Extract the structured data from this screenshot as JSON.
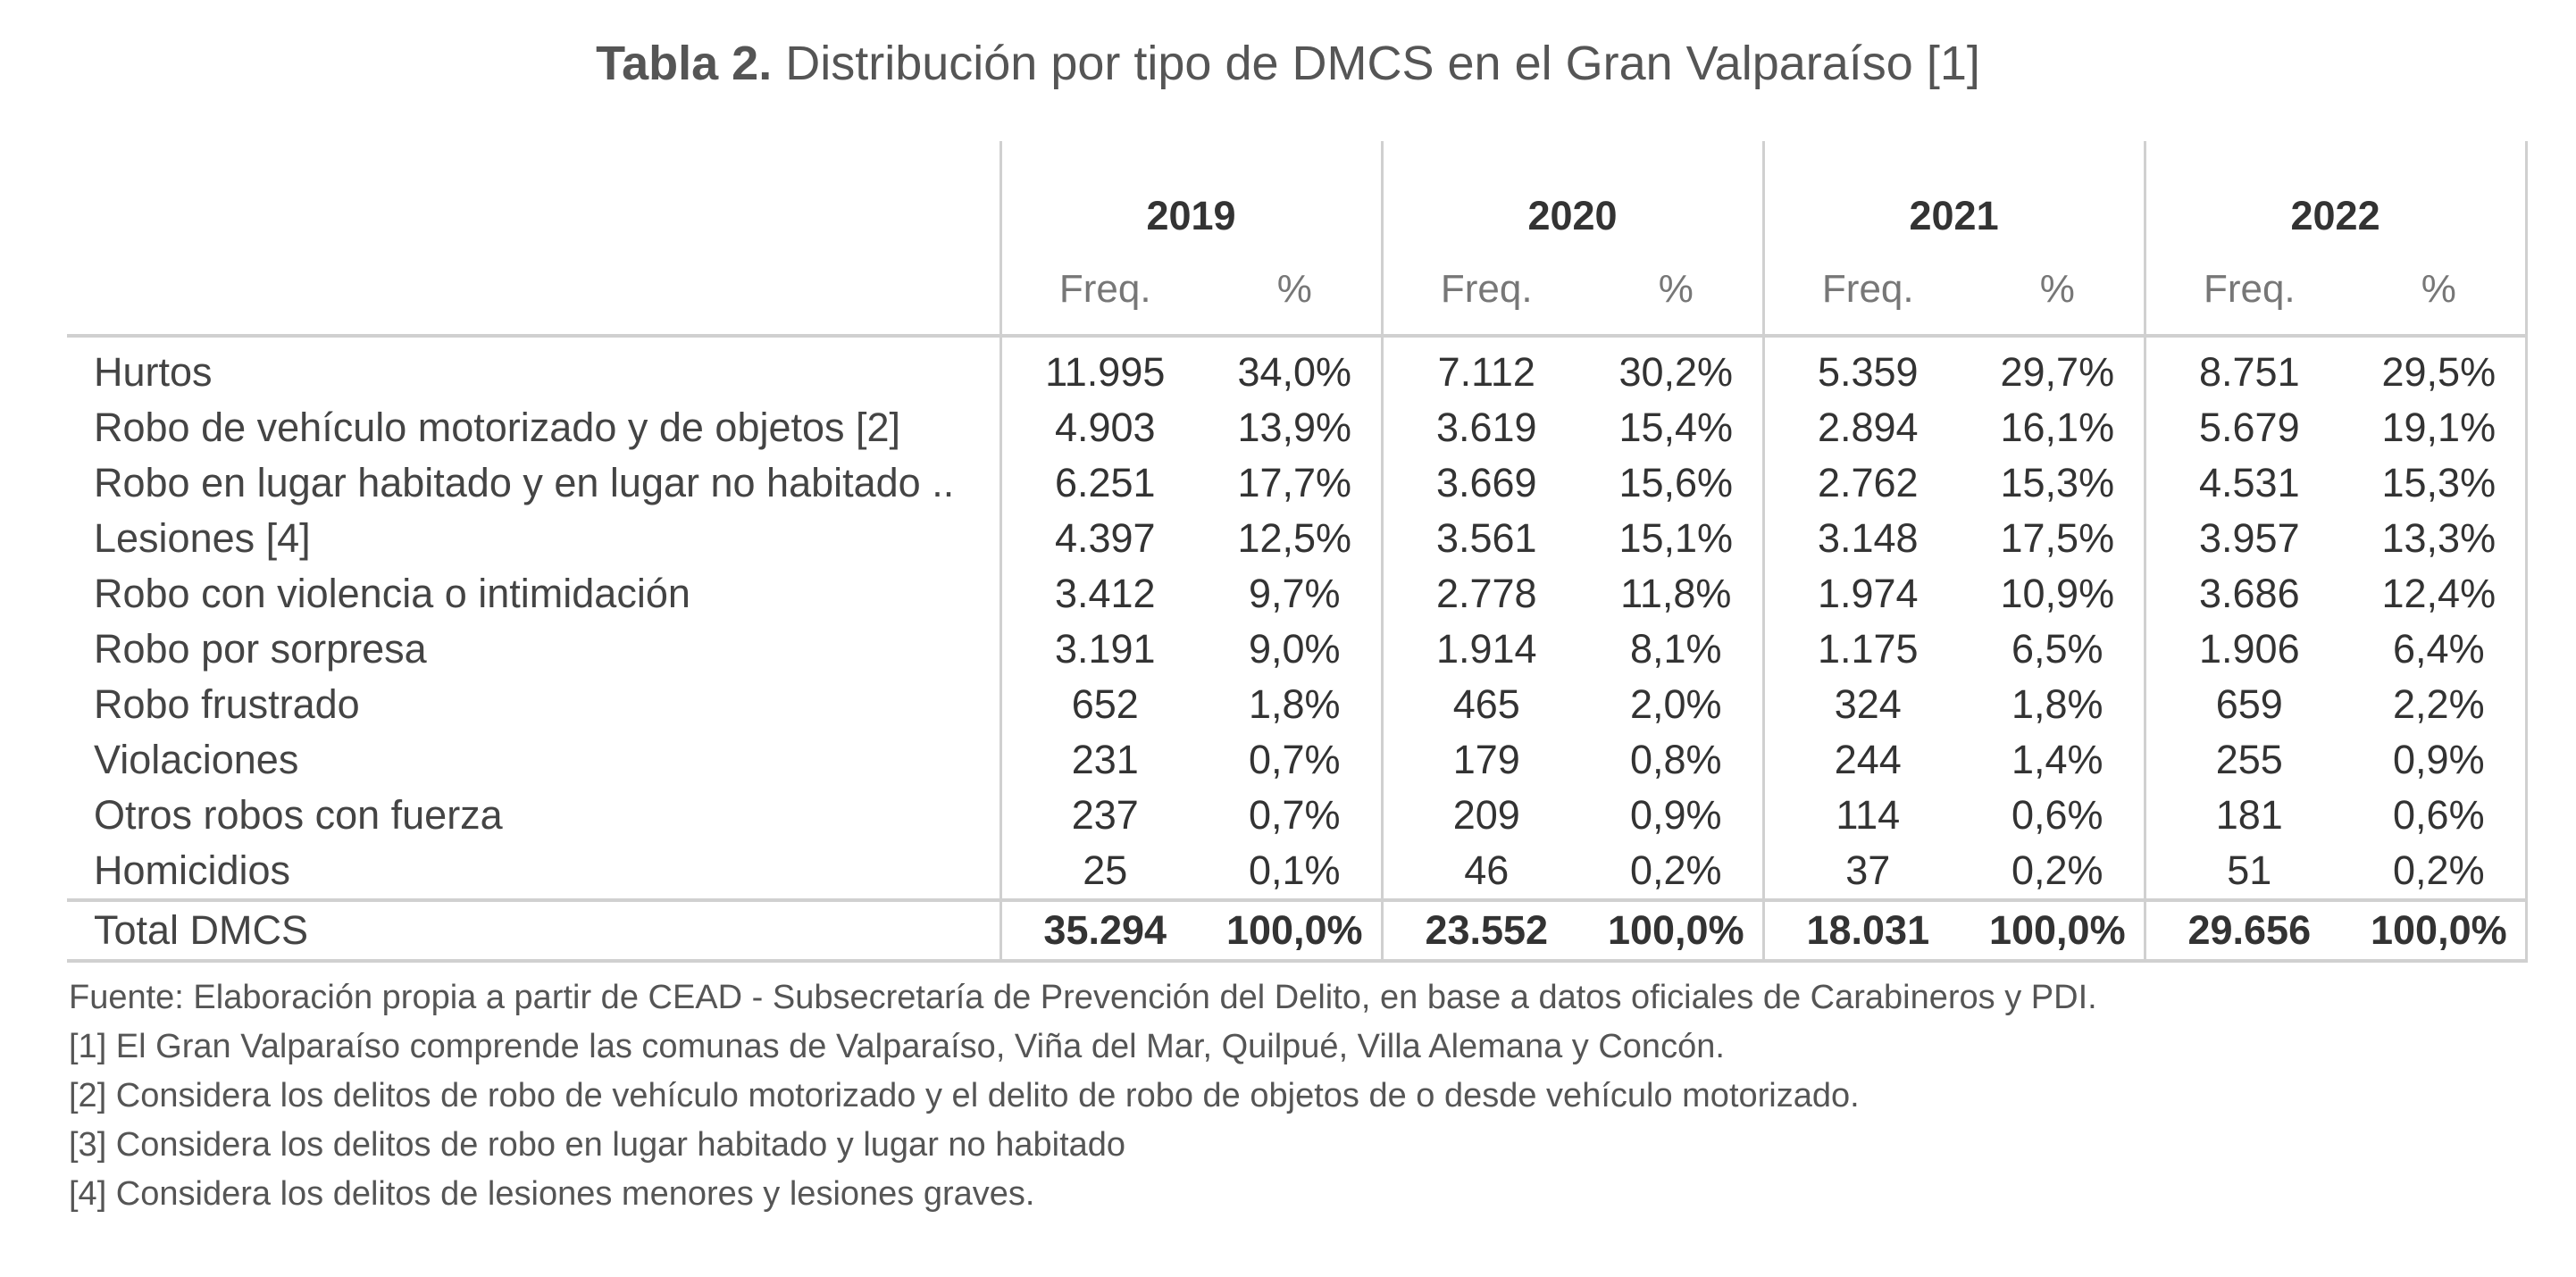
{
  "title": {
    "bold": "Tabla 2.",
    "text": "Distribución por tipo de DMCS en el Gran Valparaíso [1]"
  },
  "years": [
    "2019",
    "2020",
    "2021",
    "2022"
  ],
  "subheaders": {
    "freq": "Freq.",
    "pct": "%"
  },
  "rows": [
    {
      "label": "Hurtos",
      "cells": [
        "11.995",
        "34,0%",
        "7.112",
        "30,2%",
        "5.359",
        "29,7%",
        "8.751",
        "29,5%"
      ]
    },
    {
      "label": "Robo de vehículo motorizado y de objetos [2]",
      "cells": [
        "4.903",
        "13,9%",
        "3.619",
        "15,4%",
        "2.894",
        "16,1%",
        "5.679",
        "19,1%"
      ]
    },
    {
      "label": "Robo en lugar habitado y en lugar no habitado ..",
      "cells": [
        "6.251",
        "17,7%",
        "3.669",
        "15,6%",
        "2.762",
        "15,3%",
        "4.531",
        "15,3%"
      ]
    },
    {
      "label": "Lesiones [4]",
      "cells": [
        "4.397",
        "12,5%",
        "3.561",
        "15,1%",
        "3.148",
        "17,5%",
        "3.957",
        "13,3%"
      ]
    },
    {
      "label": "Robo con violencia o intimidación",
      "cells": [
        "3.412",
        "9,7%",
        "2.778",
        "11,8%",
        "1.974",
        "10,9%",
        "3.686",
        "12,4%"
      ]
    },
    {
      "label": "Robo por sorpresa",
      "cells": [
        "3.191",
        "9,0%",
        "1.914",
        "8,1%",
        "1.175",
        "6,5%",
        "1.906",
        "6,4%"
      ]
    },
    {
      "label": "Robo frustrado",
      "cells": [
        "652",
        "1,8%",
        "465",
        "2,0%",
        "324",
        "1,8%",
        "659",
        "2,2%"
      ]
    },
    {
      "label": "Violaciones",
      "cells": [
        "231",
        "0,7%",
        "179",
        "0,8%",
        "244",
        "1,4%",
        "255",
        "0,9%"
      ]
    },
    {
      "label": "Otros robos con fuerza",
      "cells": [
        "237",
        "0,7%",
        "209",
        "0,9%",
        "114",
        "0,6%",
        "181",
        "0,6%"
      ]
    },
    {
      "label": "Homicidios",
      "cells": [
        "25",
        "0,1%",
        "46",
        "0,2%",
        "37",
        "0,2%",
        "51",
        "0,2%"
      ]
    }
  ],
  "total": {
    "label": "Total DMCS",
    "cells": [
      "35.294",
      "100,0%",
      "23.552",
      "100,0%",
      "18.031",
      "100,0%",
      "29.656",
      "100,0%"
    ]
  },
  "notes": [
    "Fuente: Elaboración propia a partir de CEAD - Subsecretaría de Prevención del Delito, en base a datos oficiales de Carabineros y PDI.",
    "[1] El Gran Valparaíso comprende las comunas de Valparaíso, Viña del Mar, Quilpué, Villa Alemana y Concón.",
    "[2] Considera los delitos de robo de vehículo motorizado y el delito de robo de objetos de o desde vehículo motorizado.",
    "[3] Considera los delitos de robo en lugar habitado y lugar no habitado",
    "[4] Considera los delitos de lesiones menores y lesiones graves."
  ]
}
